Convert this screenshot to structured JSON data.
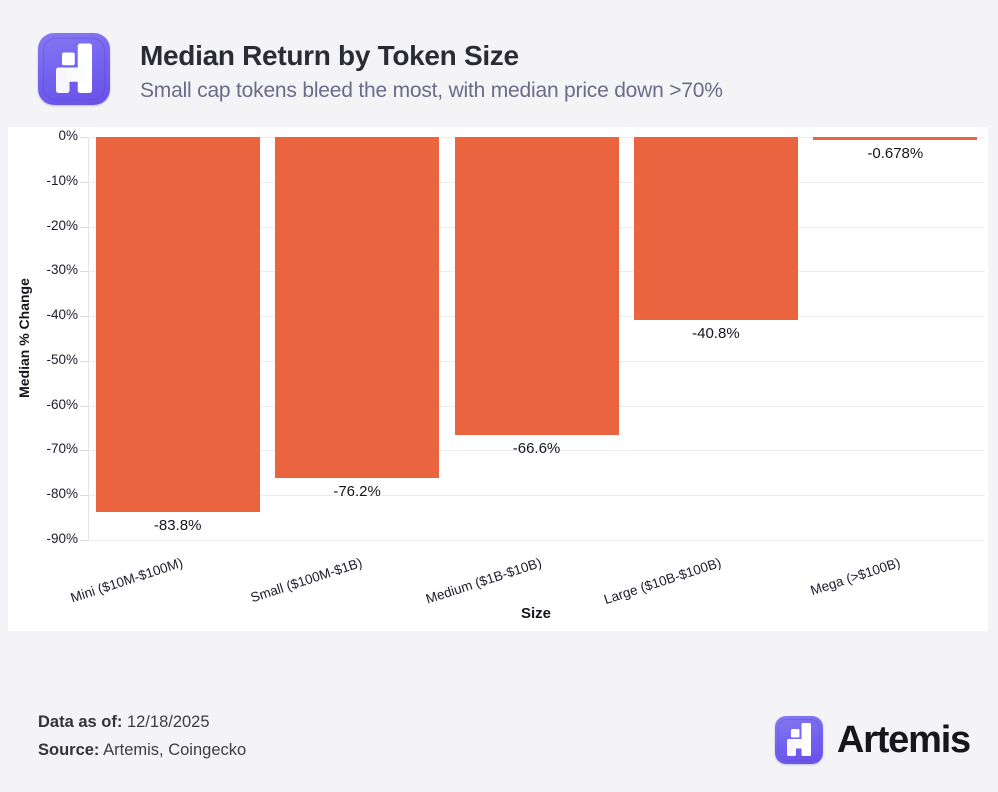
{
  "header": {
    "title": "Median Return by Token Size",
    "subtitle": "Small cap tokens bleed the most, with median price down >70%",
    "logo_icon": "artemis-logo-icon"
  },
  "chart_data": {
    "type": "bar",
    "title": "Median Return by Token Size",
    "categories": [
      "Mini ($10M-$100M)",
      "Small ($100M-$1B)",
      "Medium ($1B-$10B)",
      "Large ($10B-$100B)",
      "Mega (>$100B)"
    ],
    "values": [
      -83.8,
      -76.2,
      -66.6,
      -40.8,
      -0.678
    ],
    "value_labels": [
      "-83.8%",
      "-76.2%",
      "-66.6%",
      "-40.8%",
      "-0.678%"
    ],
    "xlabel": "Size",
    "ylabel": "Median % Change",
    "ylim": [
      -90,
      0
    ],
    "ytick_labels": [
      "0%",
      "-10%",
      "-20%",
      "-30%",
      "-40%",
      "-50%",
      "-60%",
      "-70%",
      "-80%",
      "-90%"
    ],
    "grid": true,
    "legend": "none",
    "bar_color": "#ea6440"
  },
  "footer": {
    "data_as_of_label": "Data as of:",
    "data_as_of_value": "12/18/2025",
    "source_label": "Source:",
    "source_value": "Artemis, Coingecko",
    "brand": "Artemis",
    "brand_logo_icon": "artemis-logo-icon"
  },
  "colors": {
    "background": "#f4f4f6",
    "panel": "#ffffff",
    "bar": "#ea6440",
    "accent_purple": "#6f5cea",
    "subtitle": "#6b6b8a",
    "text_dark": "#1c1c2b"
  }
}
